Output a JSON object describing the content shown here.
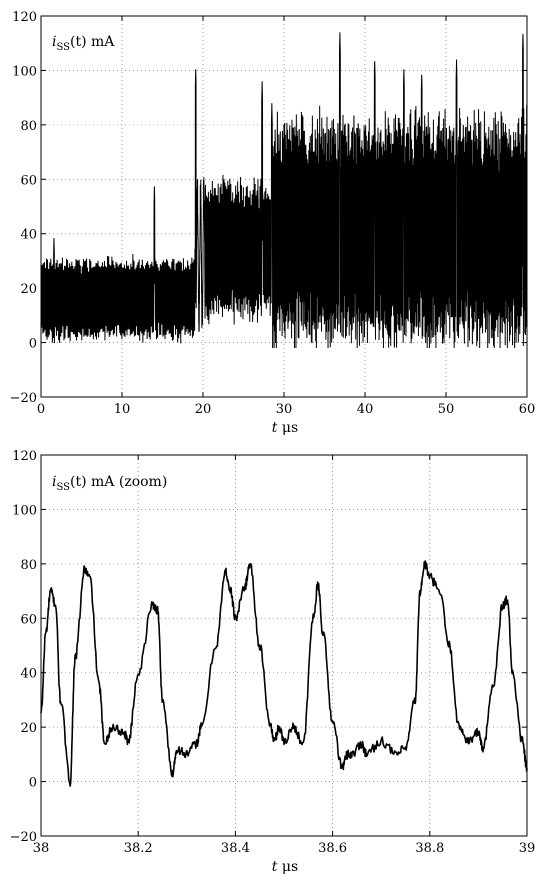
{
  "chart_data": [
    {
      "type": "line",
      "annotation": {
        "pre": "i",
        "sub": "SS",
        "post": "(t) mA"
      },
      "xlabel": {
        "var": "t",
        "unit": "μs"
      },
      "ylabel": "",
      "xlim": [
        0,
        60
      ],
      "ylim": [
        -20,
        120
      ],
      "xticks": [
        "0",
        "10",
        "20",
        "30",
        "40",
        "50",
        "60"
      ],
      "yticks": [
        "−20",
        "0",
        "20",
        "40",
        "60",
        "80",
        "100",
        "120"
      ],
      "grid": true,
      "color": "#000000",
      "regimes": [
        {
          "t_start": 0,
          "t_end": 19,
          "low": 2,
          "high": 30,
          "period_us": 0.13
        },
        {
          "t_start": 19,
          "t_end": 20.2,
          "low": 5,
          "high": 60,
          "period_us": 0.4
        },
        {
          "t_start": 20.2,
          "t_end": 28.5,
          "low": 10,
          "high": 58,
          "period_us": 0.12
        },
        {
          "t_start": 28.5,
          "t_end": 60,
          "low": 2,
          "high": 80,
          "period_us": 0.09
        }
      ],
      "spikes": [
        {
          "t": 1.6,
          "v": 39
        },
        {
          "t": 14.0,
          "v": 58
        },
        {
          "t": 19.1,
          "v": 101
        },
        {
          "t": 27.3,
          "v": 96
        },
        {
          "t": 28.5,
          "v": 88
        },
        {
          "t": 36.9,
          "v": 114
        },
        {
          "t": 41.2,
          "v": 104
        },
        {
          "t": 44.8,
          "v": 101
        },
        {
          "t": 47.0,
          "v": 99
        },
        {
          "t": 51.3,
          "v": 104
        },
        {
          "t": 59.5,
          "v": 114
        }
      ]
    },
    {
      "type": "line",
      "annotation": {
        "pre": "i",
        "sub": "SS",
        "post": "(t) mA (zoom)"
      },
      "xlabel": {
        "var": "t",
        "unit": "μs"
      },
      "ylabel": "",
      "xlim": [
        38,
        39
      ],
      "ylim": [
        -20,
        120
      ],
      "xticks": [
        "38",
        "38.2",
        "38.4",
        "38.6",
        "38.8",
        "39"
      ],
      "yticks": [
        "−20",
        "0",
        "20",
        "40",
        "60",
        "80",
        "100",
        "120"
      ],
      "grid": true,
      "color": "#000000",
      "series": [
        {
          "x": [
            38.0,
            38.01,
            38.02,
            38.03,
            38.04,
            38.06,
            38.07,
            38.09,
            38.1,
            38.12,
            38.13,
            38.15,
            38.17,
            38.18,
            38.2,
            38.23,
            38.24,
            38.25,
            38.27,
            38.28,
            38.3,
            38.32,
            38.33,
            38.36,
            38.38,
            38.39,
            38.4,
            38.42,
            38.43,
            38.45,
            38.47,
            38.48,
            38.49,
            38.5,
            38.52,
            38.54,
            38.56,
            38.57,
            38.58,
            38.6,
            38.62,
            38.63,
            38.64,
            38.66,
            38.67,
            38.7,
            38.73,
            38.75,
            38.77,
            38.78,
            38.79,
            38.8,
            38.82,
            38.84,
            38.86,
            38.88,
            38.9,
            38.91,
            38.93,
            38.95,
            38.96,
            38.97,
            38.99,
            39.0
          ],
          "y": [
            25,
            55,
            70,
            65,
            30,
            0,
            45,
            78,
            75,
            35,
            15,
            20,
            18,
            15,
            40,
            65,
            63,
            30,
            3,
            12,
            10,
            14,
            20,
            50,
            77,
            70,
            60,
            72,
            80,
            50,
            22,
            15,
            20,
            15,
            20,
            14,
            60,
            72,
            55,
            22,
            5,
            10,
            10,
            14,
            10,
            15,
            10,
            12,
            30,
            70,
            80,
            75,
            70,
            50,
            20,
            15,
            18,
            12,
            35,
            65,
            67,
            40,
            15,
            5
          ]
        }
      ]
    }
  ]
}
